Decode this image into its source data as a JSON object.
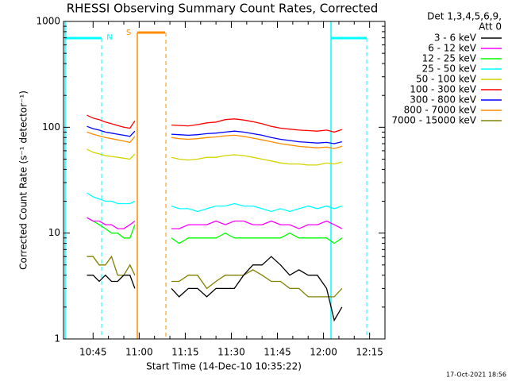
{
  "chart_data": {
    "type": "line",
    "title": "RHESSI Observing Summary Count Rates, Corrected",
    "xlabel": "Start Time (14-Dec-10 10:35:22)",
    "ylabel": "Corrected Count Rate (s⁻¹ detector⁻¹)",
    "legend_header": [
      "Det 1,3,4,5,6,9,",
      "Att 0"
    ],
    "annotations": [
      "N",
      "S"
    ],
    "footer": "17-Oct-2021 18:56",
    "log_y": true,
    "xlim": [
      635.37,
      740
    ],
    "ylim": [
      1,
      1000
    ],
    "xticks": [
      {
        "value": 645,
        "label": "10:45"
      },
      {
        "value": 660,
        "label": "11:00"
      },
      {
        "value": 675,
        "label": "11:15"
      },
      {
        "value": 690,
        "label": "11:30"
      },
      {
        "value": 705,
        "label": "11:45"
      },
      {
        "value": 720,
        "label": "12:00"
      },
      {
        "value": 735,
        "label": "12:15"
      }
    ],
    "yticks": [
      1,
      10,
      100,
      1000
    ],
    "x": [
      643,
      645,
      647,
      649,
      651,
      653,
      655,
      657,
      658.6,
      664,
      670.5,
      673,
      676,
      679,
      682,
      685,
      688,
      691,
      694,
      697,
      700,
      703,
      706,
      709,
      712,
      715,
      718,
      721,
      723.5,
      726
    ],
    "series": [
      {
        "name": "3 - 6 keV",
        "color": "#000000",
        "values": [
          4,
          4,
          3.5,
          4,
          3.5,
          3.5,
          4,
          4,
          3,
          null,
          3,
          2.5,
          3,
          3,
          2.5,
          3,
          3,
          3,
          4,
          5,
          5,
          6,
          5,
          4,
          4.5,
          4,
          4,
          3,
          1.5,
          2
        ]
      },
      {
        "name": "6 - 12 keV",
        "color": "#ff00ff",
        "values": [
          14,
          13,
          13,
          12,
          12,
          11,
          11,
          12,
          13,
          null,
          11,
          11,
          12,
          12,
          12,
          13,
          12,
          13,
          13,
          12,
          12,
          13,
          12,
          12,
          11,
          12,
          12,
          13,
          12,
          11
        ]
      },
      {
        "name": "12 - 25 keV",
        "color": "#00ff00",
        "values": [
          14,
          13,
          12,
          11,
          10,
          10,
          9,
          9,
          12,
          null,
          9,
          8,
          9,
          9,
          9,
          9,
          10,
          9,
          9,
          9,
          9,
          9,
          9,
          10,
          9,
          9,
          9,
          9,
          8,
          9
        ]
      },
      {
        "name": "25 - 50 keV",
        "color": "#00ffff",
        "values": [
          24,
          22,
          21,
          20,
          20,
          19,
          19,
          19,
          20,
          null,
          18,
          17,
          17,
          16,
          17,
          18,
          18,
          19,
          18,
          18,
          17,
          16,
          17,
          16,
          17,
          18,
          17,
          18,
          17,
          18
        ]
      },
      {
        "name": "50 - 100 keV",
        "color": "#d4d400",
        "values": [
          62,
          58,
          56,
          54,
          53,
          52,
          51,
          50,
          56,
          null,
          52,
          50,
          49,
          50,
          52,
          52,
          54,
          55,
          54,
          52,
          50,
          48,
          46,
          45,
          45,
          44,
          44,
          46,
          45,
          47
        ]
      },
      {
        "name": "100 - 300 keV",
        "color": "#ff0000",
        "values": [
          130,
          122,
          118,
          112,
          108,
          104,
          100,
          98,
          115,
          null,
          105,
          104,
          103,
          106,
          110,
          112,
          118,
          120,
          117,
          113,
          108,
          102,
          98,
          96,
          94,
          93,
          92,
          94,
          90,
          95
        ]
      },
      {
        "name": "300 - 800 keV",
        "color": "#0000ff",
        "values": [
          102,
          97,
          94,
          90,
          88,
          86,
          84,
          82,
          92,
          null,
          86,
          85,
          84,
          85,
          87,
          88,
          90,
          92,
          90,
          87,
          84,
          80,
          77,
          75,
          73,
          72,
          71,
          72,
          70,
          73
        ]
      },
      {
        "name": "800 - 7000 keV",
        "color": "#ff8c00",
        "values": [
          90,
          86,
          83,
          80,
          78,
          76,
          74,
          72,
          82,
          null,
          80,
          78,
          77,
          78,
          80,
          81,
          83,
          84,
          82,
          79,
          76,
          73,
          70,
          68,
          66,
          65,
          64,
          65,
          63,
          66
        ]
      },
      {
        "name": "7000 - 15000 keV",
        "color": "#808000",
        "values": [
          6,
          6,
          5,
          5,
          6,
          4,
          4,
          5,
          4,
          null,
          3.5,
          3.5,
          4,
          4,
          3,
          3.5,
          4,
          4,
          4,
          4.5,
          4,
          3.5,
          3.5,
          3,
          3,
          2.5,
          2.5,
          2.5,
          2.5,
          3
        ]
      }
    ]
  }
}
